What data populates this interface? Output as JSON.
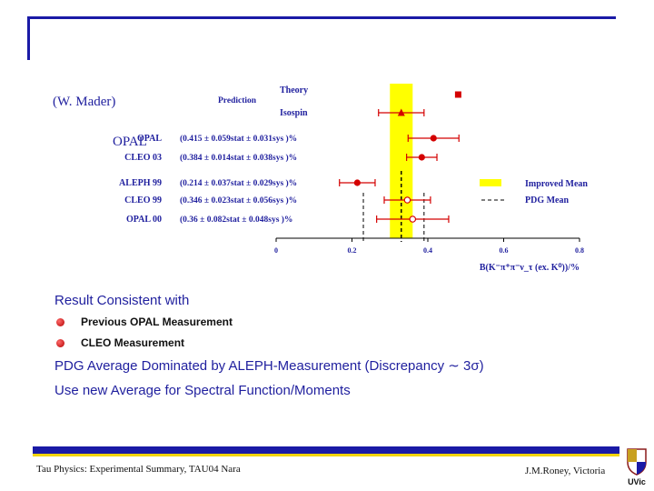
{
  "slide": {
    "author_note": "(W. Mader)",
    "opal_label": "OPAL",
    "bullets": {
      "heading": "Result Consistent with",
      "items": [
        "Previous OPAL Measurement",
        "CLEO Measurement"
      ],
      "line1": "PDG Average Dominated by ALEPH-Measurement (Discrepancy ∼ 3σ)",
      "line2": "Use new Average for Spectral Function/Moments"
    },
    "footer_left": "Tau Physics: Experimental Summary, TAU04 Nara",
    "footer_right": "J.M.Roney, Victoria",
    "logo_text": "UVic"
  },
  "chart_data": {
    "type": "scatter",
    "xlim": [
      0,
      0.8
    ],
    "x_ticks": [
      "0",
      "0.2",
      "0.4",
      "0.6",
      "0.8"
    ],
    "x_tick_values": [
      0,
      0.2,
      0.4,
      0.6,
      0.8
    ],
    "xlabel": "B(K⁻π⁺π⁻ν_τ (ex. K⁰))/%",
    "improved_mean": 0.33,
    "improved_band": [
      0.3,
      0.36
    ],
    "pdg_mean": 0.33,
    "pdg_band": [
      0.23,
      0.39
    ],
    "rows": [
      {
        "name": "Theory",
        "group": "Prediction",
        "value": 0.48,
        "marker": "square"
      },
      {
        "name": "Isospin",
        "value": 0.33,
        "err_low": 0.06,
        "err_high": 0.06,
        "marker": "triangle"
      },
      {
        "name": "OPAL",
        "text": "(0.415 ± 0.059stat ± 0.031sys )%",
        "value": 0.415,
        "err_low": 0.067,
        "err_high": 0.067,
        "marker": "filled"
      },
      {
        "name": "CLEO 03",
        "text": "(0.384 ± 0.014stat ± 0.038sys )%",
        "value": 0.384,
        "err_low": 0.04,
        "err_high": 0.04,
        "marker": "filled"
      },
      {
        "name": "ALEPH 99",
        "text": "(0.214 ± 0.037stat ± 0.029sys )%",
        "value": 0.214,
        "err_low": 0.047,
        "err_high": 0.047,
        "marker": "filled"
      },
      {
        "name": "CLEO 99",
        "text": "(0.346 ± 0.023stat ± 0.056sys )%",
        "value": 0.346,
        "err_low": 0.061,
        "err_high": 0.061,
        "marker": "open"
      },
      {
        "name": "OPAL 00",
        "text": "(0.36 ± 0.082stat ± 0.048sys )%",
        "value": 0.36,
        "err_low": 0.095,
        "err_high": 0.095,
        "marker": "open"
      }
    ],
    "legend": [
      {
        "label": "Improved Mean",
        "style": "band"
      },
      {
        "label": "PDG Mean",
        "style": "dashed"
      }
    ],
    "colors": {
      "marker": "#d40000",
      "label": "#1f1f9e",
      "band": "#ffff00",
      "frame": "#1a1aa6"
    }
  }
}
